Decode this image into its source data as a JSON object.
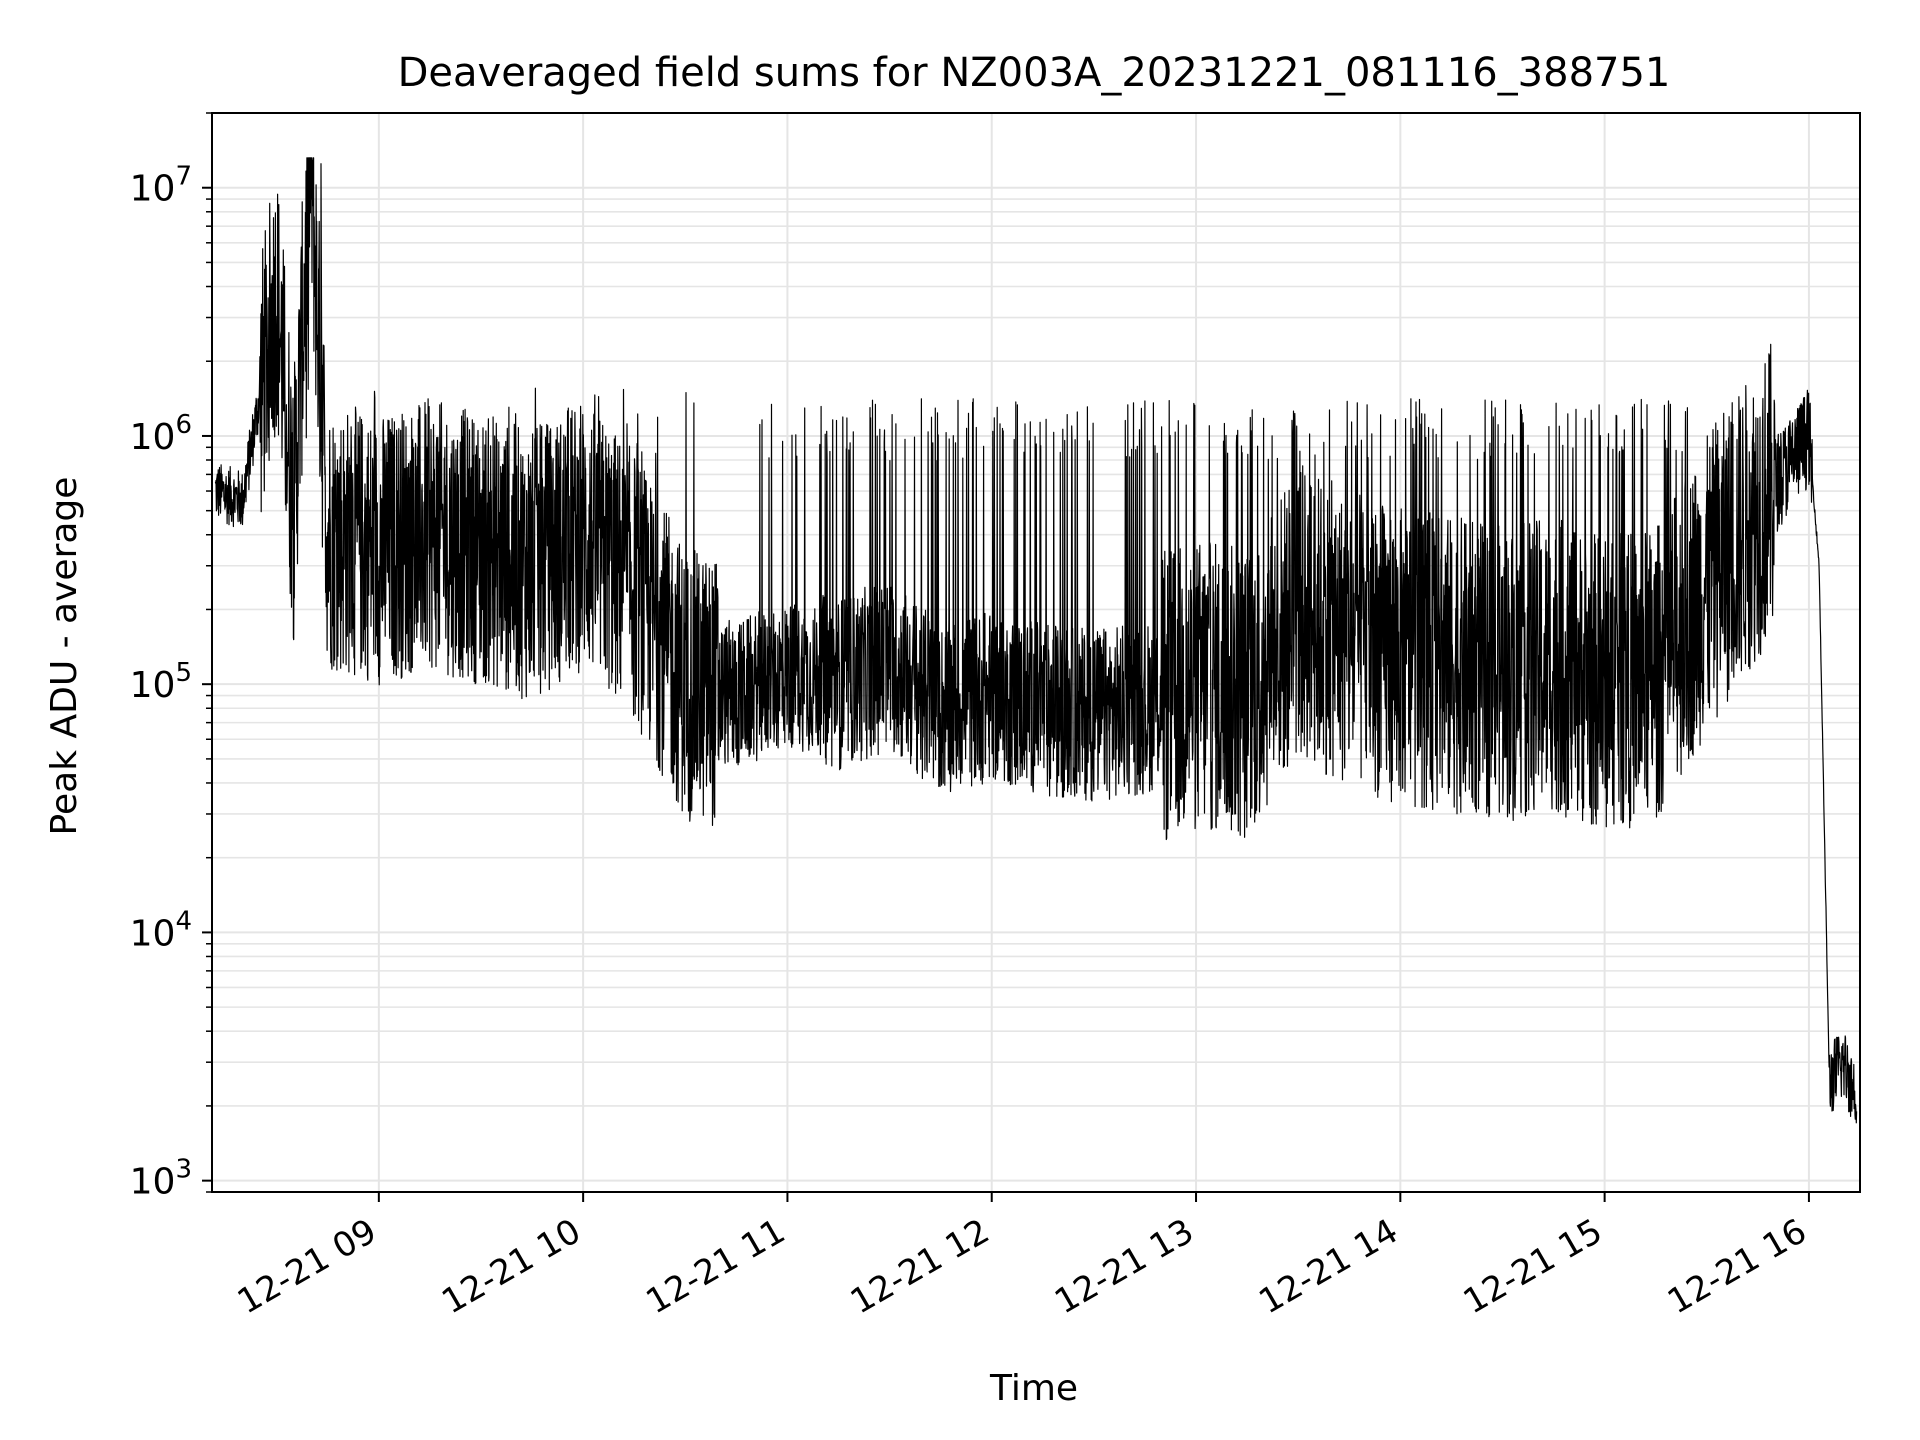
{
  "chart_data": {
    "type": "line",
    "title": "Deaveraged field sums for NZ003A_20231221_081116_388751",
    "xlabel": "Time",
    "ylabel": "Peak ADU - average",
    "yscale": "log",
    "ylim": [
      900,
      20000000
    ],
    "xlim": [
      "2023-12-21 08:11",
      "2023-12-21 16:15"
    ],
    "x_ticks": [
      "12-21 09",
      "12-21 10",
      "12-21 11",
      "12-21 12",
      "12-21 13",
      "12-21 14",
      "12-21 15",
      "12-21 16"
    ],
    "y_ticks": [
      "10^3",
      "10^4",
      "10^5",
      "10^6",
      "10^7"
    ],
    "grid": true,
    "legend": "none",
    "line_color": "#000000",
    "grid_color": "#e5e5e5",
    "series": [
      {
        "x": [
          "2023-12-21 08:12",
          "2023-12-21 08:20",
          "2023-12-21 08:30",
          "2023-12-21 08:35",
          "2023-12-21 08:40",
          "2023-12-21 08:45",
          "2023-12-21 09:00",
          "2023-12-21 09:15",
          "2023-12-21 09:30",
          "2023-12-21 09:45",
          "2023-12-21 10:00",
          "2023-12-21 10:15",
          "2023-12-21 10:30",
          "2023-12-21 10:45",
          "2023-12-21 11:00",
          "2023-12-21 11:15",
          "2023-12-21 11:30",
          "2023-12-21 11:45",
          "2023-12-21 12:00",
          "2023-12-21 12:15",
          "2023-12-21 12:30",
          "2023-12-21 12:45",
          "2023-12-21 13:00",
          "2023-12-21 13:15",
          "2023-12-21 13:30",
          "2023-12-21 13:45",
          "2023-12-21 14:00",
          "2023-12-21 14:15",
          "2023-12-21 14:30",
          "2023-12-21 14:45",
          "2023-12-21 15:00",
          "2023-12-21 15:15",
          "2023-12-21 15:30",
          "2023-12-21 15:45",
          "2023-12-21 15:55",
          "2023-12-21 16:00",
          "2023-12-21 16:03",
          "2023-12-21 16:06",
          "2023-12-21 16:10",
          "2023-12-21 16:14"
        ],
        "values": [
          600000,
          550000,
          3800000,
          500000,
          12500000,
          400000,
          350000,
          400000,
          350000,
          300000,
          400000,
          250000,
          100000,
          90000,
          110000,
          100000,
          120000,
          80000,
          90000,
          80000,
          75000,
          80000,
          100000,
          90000,
          200000,
          150000,
          130000,
          120000,
          110000,
          120000,
          100000,
          110000,
          250000,
          500000,
          800000,
          1000000,
          300000,
          2500,
          3000,
          2200
        ]
      }
    ]
  }
}
